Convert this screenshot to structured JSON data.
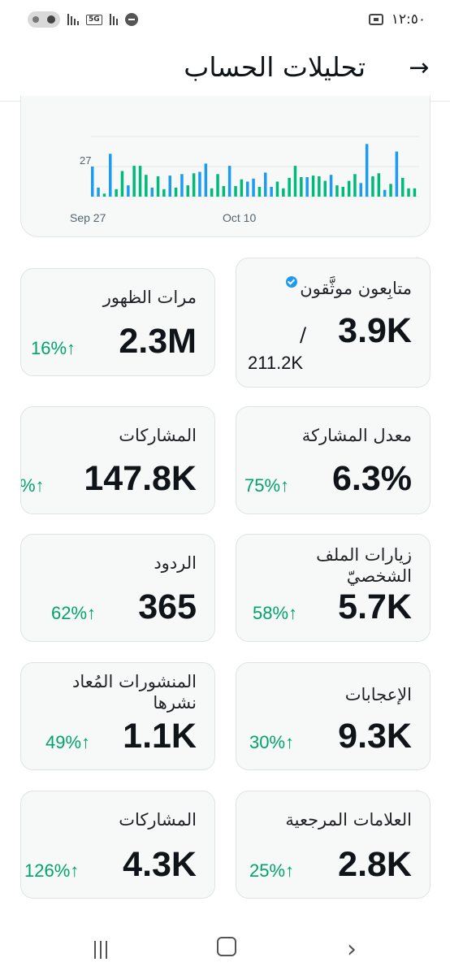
{
  "status_bar": {
    "network": "5G",
    "clock": "١٢:٥٠"
  },
  "header": {
    "title": "تحليلات الحساب",
    "back_icon": "arrow-right-icon"
  },
  "chart_data": {
    "type": "bar",
    "annotation": "27",
    "x_tick_labels": [
      "Sep 27",
      "Oct 10"
    ],
    "series_colors": [
      "#1d9bf0",
      "#00ba7c"
    ],
    "bars": [
      {
        "v": 40,
        "c": 0
      },
      {
        "v": 12,
        "c": 0
      },
      {
        "v": 4,
        "c": 1
      },
      {
        "v": 57,
        "c": 0
      },
      {
        "v": 10,
        "c": 1
      },
      {
        "v": 34,
        "c": 1
      },
      {
        "v": 15,
        "c": 0
      },
      {
        "v": 41,
        "c": 1
      },
      {
        "v": 41,
        "c": 1
      },
      {
        "v": 29,
        "c": 1
      },
      {
        "v": 12,
        "c": 0
      },
      {
        "v": 27,
        "c": 1
      },
      {
        "v": 10,
        "c": 1
      },
      {
        "v": 28,
        "c": 0
      },
      {
        "v": 12,
        "c": 1
      },
      {
        "v": 30,
        "c": 0
      },
      {
        "v": 15,
        "c": 1
      },
      {
        "v": 31,
        "c": 1
      },
      {
        "v": 33,
        "c": 0
      },
      {
        "v": 44,
        "c": 0
      },
      {
        "v": 11,
        "c": 1
      },
      {
        "v": 30,
        "c": 1
      },
      {
        "v": 14,
        "c": 1
      },
      {
        "v": 41,
        "c": 0
      },
      {
        "v": 14,
        "c": 1
      },
      {
        "v": 23,
        "c": 1
      },
      {
        "v": 20,
        "c": 0
      },
      {
        "v": 24,
        "c": 0
      },
      {
        "v": 13,
        "c": 1
      },
      {
        "v": 32,
        "c": 0
      },
      {
        "v": 13,
        "c": 0
      },
      {
        "v": 20,
        "c": 1
      },
      {
        "v": 11,
        "c": 1
      },
      {
        "v": 25,
        "c": 1
      },
      {
        "v": 41,
        "c": 1
      },
      {
        "v": 26,
        "c": 1
      },
      {
        "v": 26,
        "c": 0
      },
      {
        "v": 28,
        "c": 1
      },
      {
        "v": 27,
        "c": 1
      },
      {
        "v": 21,
        "c": 1
      },
      {
        "v": 29,
        "c": 0
      },
      {
        "v": 15,
        "c": 1
      },
      {
        "v": 13,
        "c": 1
      },
      {
        "v": 21,
        "c": 1
      },
      {
        "v": 30,
        "c": 1
      },
      {
        "v": 18,
        "c": 0
      },
      {
        "v": 70,
        "c": 0
      },
      {
        "v": 27,
        "c": 1
      },
      {
        "v": 31,
        "c": 1
      },
      {
        "v": 9,
        "c": 0
      },
      {
        "v": 17,
        "c": 1
      },
      {
        "v": 60,
        "c": 0
      },
      {
        "v": 25,
        "c": 1
      },
      {
        "v": 11,
        "c": 1
      },
      {
        "v": 11,
        "c": 1
      }
    ],
    "vmax": 80
  },
  "metrics": [
    {
      "label": "متابِعون موثَّقون",
      "value": "3.9K",
      "sub": "211.2K",
      "slash": "/",
      "verified_icon": "verified-badge-icon"
    },
    {
      "label": "مرات الظهور",
      "value": "2.3M",
      "change": "16%↑"
    },
    {
      "label": "معدل المشاركة",
      "value": "6.3%",
      "change": "75%↑"
    },
    {
      "label": "المشاركات",
      "value": "147.8K",
      "change": "%↑"
    },
    {
      "label": "زيارات الملف الشخصيّ",
      "value": "5.7K",
      "change": "58%↑"
    },
    {
      "label": "الردود",
      "value": "365",
      "change": "62%↑"
    },
    {
      "label": "الإعجابات",
      "value": "9.3K",
      "change": "30%↑"
    },
    {
      "label": "المنشورات المُعاد نشرها",
      "value": "1.1K",
      "change": "49%↑"
    },
    {
      "label": "العلامات المرجعية",
      "value": "2.8K",
      "change": "25%↑"
    },
    {
      "label": "المشاركات",
      "value": "4.3K",
      "change": "126%↑"
    }
  ],
  "nav_bar": {
    "recent_icon": "recent-apps-icon",
    "home_icon": "home-icon",
    "back_icon": "chevron-right-icon"
  },
  "colors": {
    "accent_blue": "#1d9bf0",
    "accent_green": "#00ba7c",
    "positive_change": "#00a36c"
  }
}
